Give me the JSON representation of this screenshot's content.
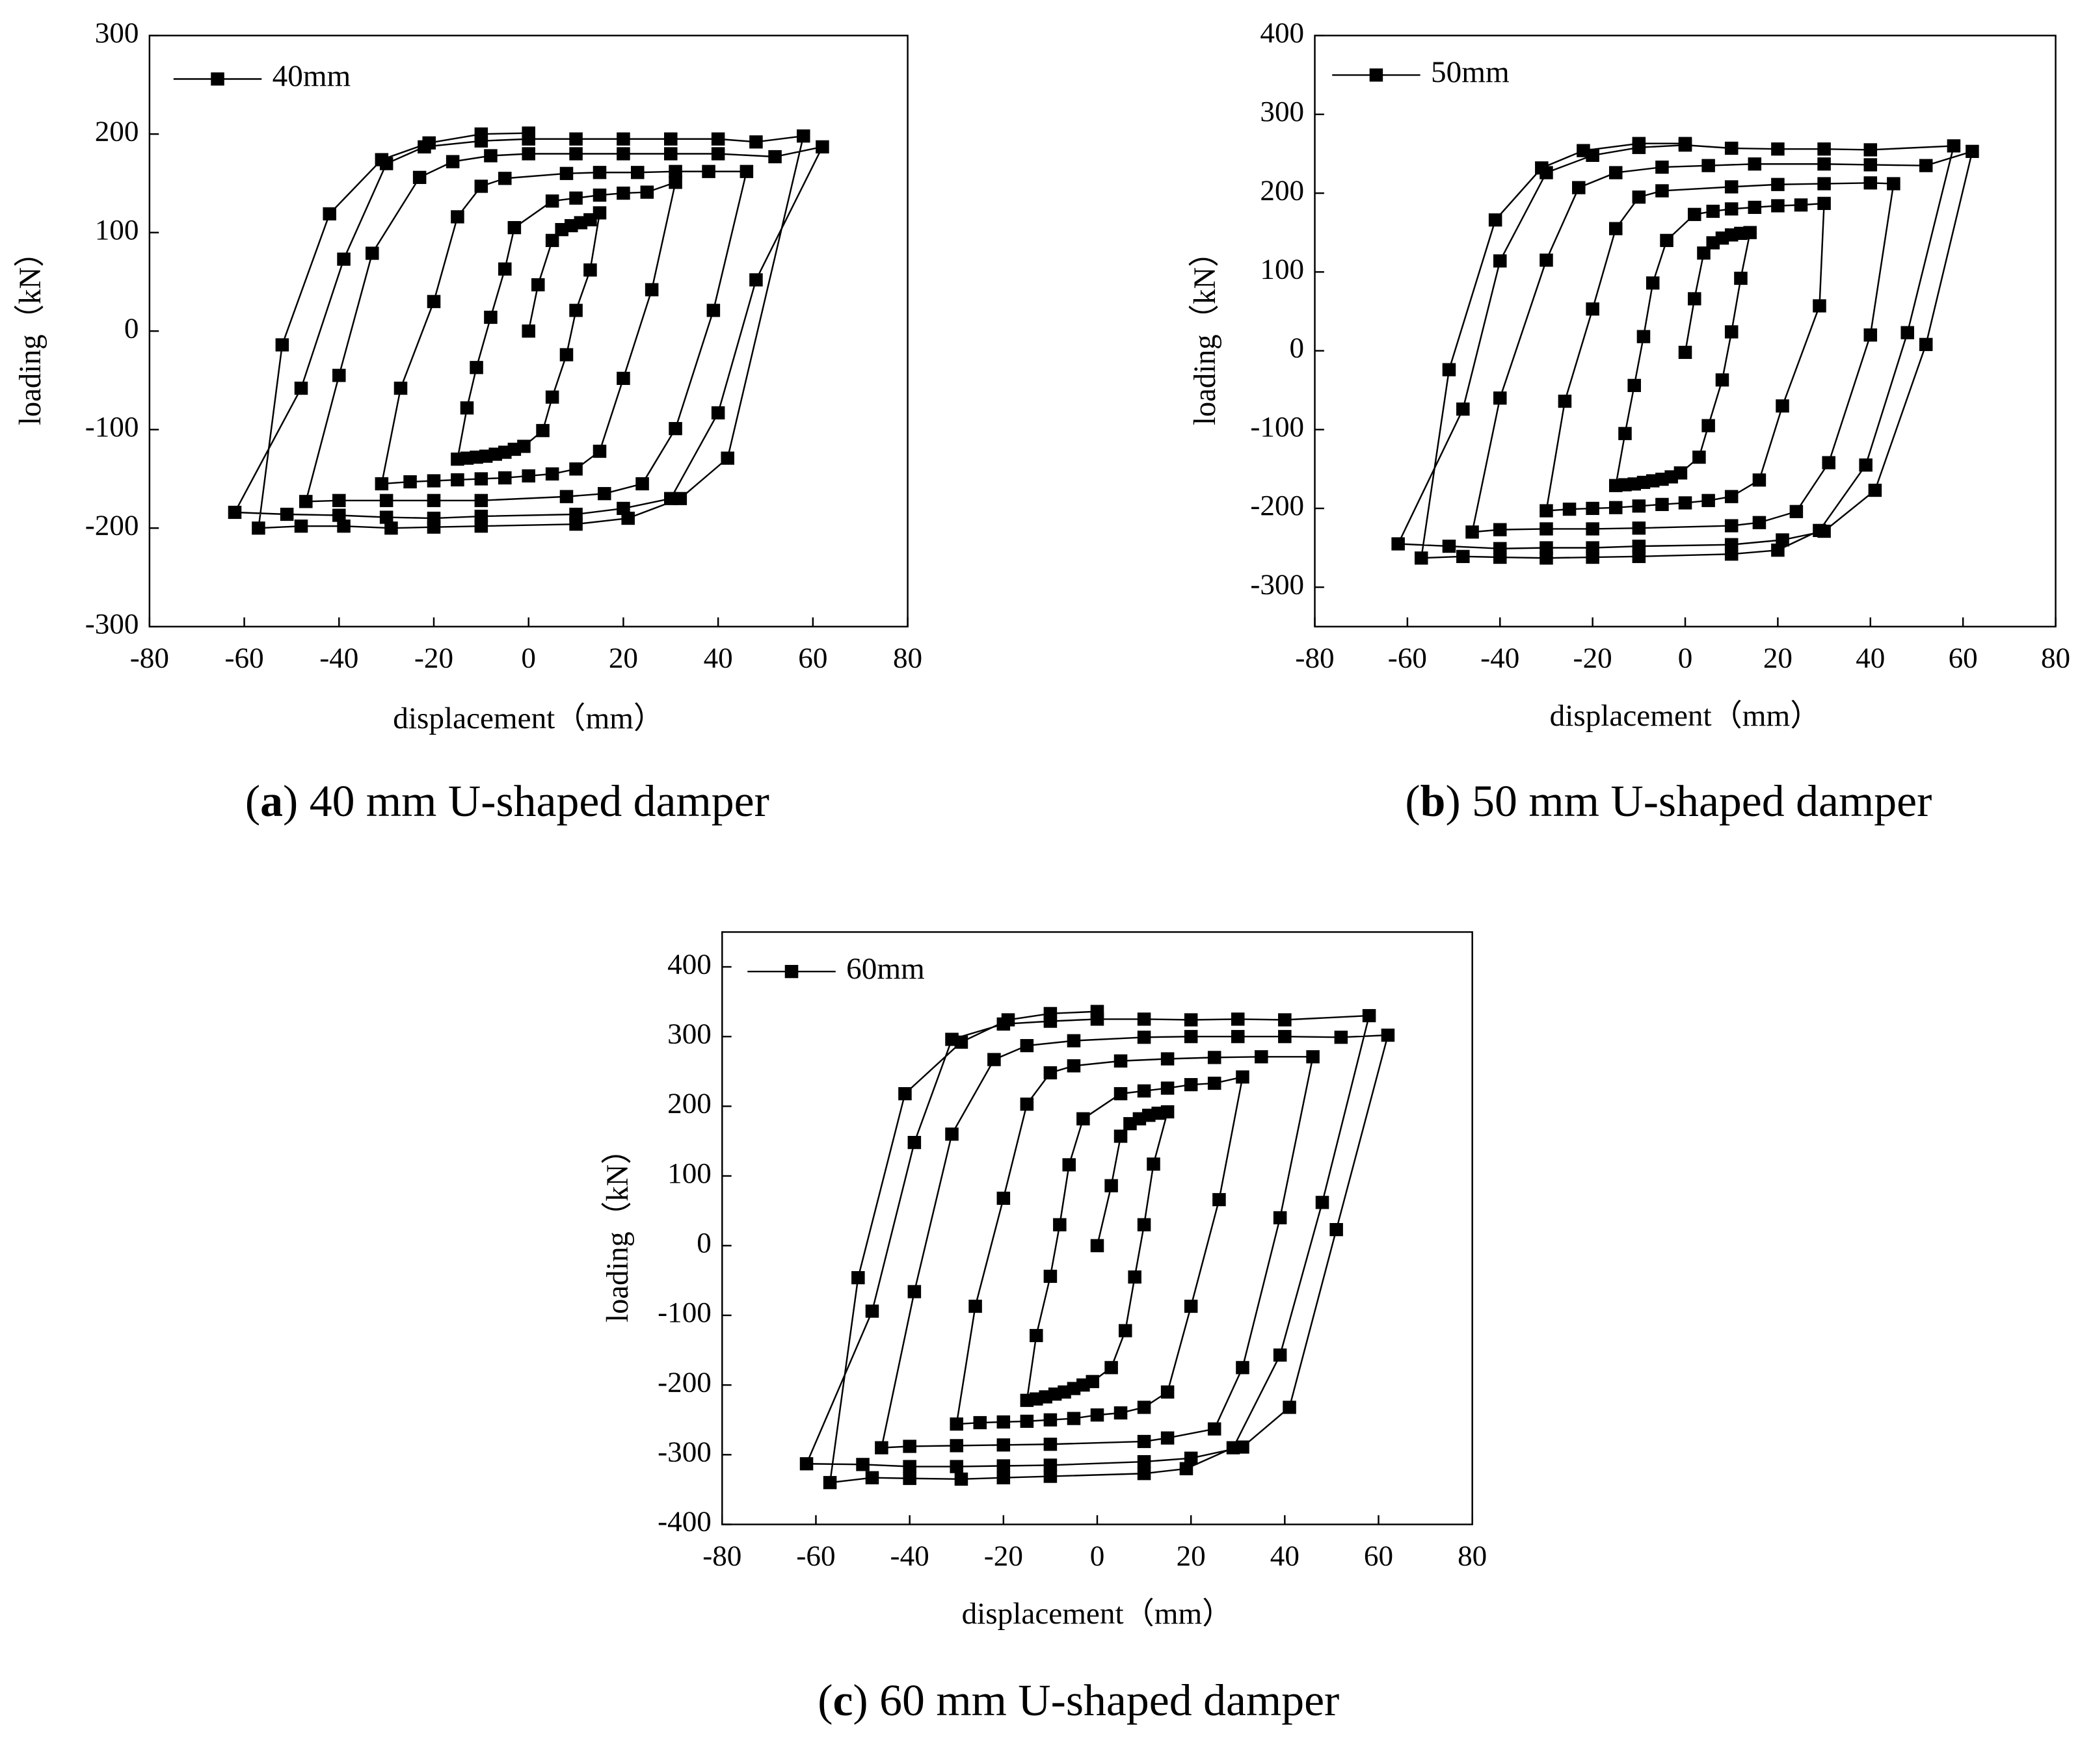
{
  "chart_data": [
    {
      "type": "line",
      "xlabel": "displacement（mm）",
      "ylabel": "loading（kN）",
      "caption": [
        "(",
        "a",
        ") 40 mm U-shaped damper"
      ],
      "xlim": [
        -80,
        80
      ],
      "ylim": [
        -300,
        300
      ],
      "xticks": [
        -80,
        -60,
        -40,
        -20,
        0,
        20,
        40,
        60,
        80
      ],
      "yticks": [
        -300,
        -200,
        -100,
        0,
        100,
        200,
        300
      ],
      "series": [
        {
          "name": "40mm",
          "color": "#000000",
          "x": [
            0,
            2,
            5,
            7,
            9,
            11,
            13,
            15,
            13,
            10,
            8,
            5,
            3,
            -1,
            -3,
            -5,
            -7,
            -9,
            -11,
            -13,
            -15,
            -13,
            -11,
            -8,
            -5,
            -3,
            5,
            10,
            15,
            20,
            25,
            31,
            26,
            20,
            15,
            10,
            5,
            0,
            -5,
            -10,
            -15,
            -20,
            -25,
            -31,
            -27,
            -20,
            -15,
            -10,
            -5,
            8,
            15,
            23,
            31,
            38,
            46,
            39,
            31,
            24,
            16,
            8,
            -10,
            -20,
            -30,
            -40,
            -47,
            -40,
            -33,
            -23,
            -16,
            -8,
            0,
            10,
            20,
            30,
            40,
            52,
            62,
            48,
            40,
            30,
            20,
            10,
            -10,
            -20,
            -30,
            -40,
            -51,
            -62,
            -48,
            -39,
            -30,
            -22,
            -10,
            0,
            10,
            20,
            30,
            40,
            48,
            58,
            42,
            32,
            21,
            10,
            -10,
            -20,
            -29,
            -39,
            -48,
            -57,
            -52,
            -42,
            -31,
            -21,
            -10,
            0
          ],
          "values": [
            0,
            47,
            92,
            103,
            107,
            110,
            113,
            120,
            62,
            21,
            -24,
            -67,
            -101,
            -117,
            -120,
            -123,
            -125,
            -127,
            -128,
            -129,
            -130,
            -78,
            -37,
            14,
            63,
            105,
            132,
            135,
            138,
            140,
            141,
            151,
            42,
            -48,
            -122,
            -140,
            -145,
            -147,
            -149,
            -150,
            -151,
            -152,
            -153,
            -155,
            -58,
            30,
            116,
            147,
            155,
            160,
            161,
            161,
            162,
            162,
            162,
            21,
            -99,
            -155,
            -165,
            -168,
            -172,
            -172,
            -172,
            -172,
            -173,
            -45,
            79,
            156,
            172,
            178,
            180,
            180,
            180,
            180,
            180,
            177,
            187,
            52,
            -83,
            -170,
            -180,
            -186,
            -188,
            -190,
            -189,
            -187,
            -186,
            -184,
            -58,
            73,
            170,
            187,
            193,
            195,
            195,
            195,
            195,
            195,
            192,
            198,
            -129,
            -170,
            -190,
            -196,
            -198,
            -199,
            -200,
            -198,
            -198,
            -200,
            -14,
            119,
            174,
            191,
            200,
            201
          ]
        }
      ]
    },
    {
      "type": "line",
      "xlabel": "displacement（mm）",
      "ylabel": "loading（kN）",
      "caption": [
        "(",
        "b",
        ") 50 mm U-shaped damper"
      ],
      "xlim": [
        -80,
        80
      ],
      "ylim": [
        -350,
        400
      ],
      "xticks": [
        -80,
        -60,
        -40,
        -20,
        0,
        20,
        40,
        60,
        80
      ],
      "yticks": [
        -300,
        -200,
        -100,
        0,
        100,
        200,
        300,
        400
      ],
      "series": [
        {
          "name": "50mm",
          "color": "#000000",
          "x": [
            0,
            2,
            4,
            6,
            8,
            10,
            12,
            14,
            12,
            10,
            8,
            5,
            3,
            -1,
            -3,
            -5,
            -7,
            -9,
            -11,
            -13,
            -15,
            -13,
            -11,
            -9,
            -7,
            -4,
            2,
            6,
            10,
            15,
            20,
            25,
            30,
            29,
            21,
            16,
            10,
            5,
            0,
            -5,
            -10,
            -15,
            -20,
            -25,
            -30,
            -26,
            -20,
            -15,
            -10,
            -5,
            10,
            20,
            30,
            40,
            45,
            40,
            31,
            24,
            16,
            10,
            -10,
            -20,
            -30,
            -40,
            -46,
            -40,
            -30,
            -23,
            -15,
            -5,
            5,
            15,
            30,
            40,
            52,
            62,
            52,
            41,
            30,
            21,
            10,
            -10,
            -20,
            -30,
            -40,
            -51,
            -62,
            -48,
            -40,
            -30,
            -20,
            -10,
            0,
            10,
            20,
            30,
            40,
            58,
            48,
            39,
            29,
            20,
            10,
            -10,
            -20,
            -30,
            -40,
            -48,
            -57,
            -51,
            -41,
            -31,
            -22,
            -10,
            0
          ],
          "values": [
            -2,
            66,
            124,
            137,
            143,
            147,
            149,
            150,
            92,
            24,
            -37,
            -95,
            -135,
            -155,
            -160,
            -163,
            -165,
            -167,
            -169,
            -170,
            -171,
            -105,
            -44,
            18,
            86,
            140,
            173,
            177,
            180,
            182,
            184,
            185,
            187,
            57,
            -70,
            -164,
            -185,
            -190,
            -193,
            -195,
            -197,
            -199,
            -200,
            -201,
            -203,
            -64,
            53,
            155,
            195,
            203,
            208,
            211,
            212,
            213,
            212,
            20,
            -142,
            -204,
            -218,
            -222,
            -225,
            -226,
            -226,
            -227,
            -230,
            -60,
            115,
            207,
            226,
            233,
            235,
            237,
            237,
            236,
            235,
            253,
            8,
            -177,
            -229,
            -240,
            -246,
            -248,
            -250,
            -250,
            -251,
            -248,
            -245,
            -74,
            114,
            226,
            248,
            258,
            261,
            257,
            256,
            256,
            255,
            260,
            23,
            -145,
            -228,
            -253,
            -258,
            -261,
            -262,
            -263,
            -262,
            -261,
            -263,
            -24,
            166,
            232,
            254,
            263,
            263
          ]
        }
      ]
    },
    {
      "type": "line",
      "xlabel": "displacement（mm）",
      "ylabel": "loading（kN）",
      "caption": [
        "(",
        "c",
        ") 60 mm U-shaped damper"
      ],
      "xlim": [
        -80,
        80
      ],
      "ylim": [
        -400,
        450
      ],
      "xticks": [
        -80,
        -60,
        -40,
        -20,
        0,
        20,
        40,
        60,
        80
      ],
      "yticks": [
        -400,
        -300,
        -200,
        -100,
        0,
        100,
        200,
        300,
        400
      ],
      "series": [
        {
          "name": "60mm",
          "color": "#000000",
          "x": [
            0,
            3,
            5,
            7,
            9,
            11,
            13,
            15,
            12,
            10,
            8,
            6,
            3,
            -1,
            -3,
            -5,
            -7,
            -9,
            -11,
            -13,
            -15,
            -13,
            -10,
            -8,
            -6,
            -3,
            5,
            10,
            15,
            20,
            25,
            31,
            26,
            20,
            15,
            10,
            5,
            0,
            -5,
            -10,
            -15,
            -20,
            -25,
            -30,
            -26,
            -20,
            -15,
            -10,
            -5,
            5,
            15,
            25,
            35,
            46,
            39,
            31,
            25,
            15,
            10,
            -10,
            -20,
            -30,
            -40,
            -46,
            -39,
            -31,
            -22,
            -15,
            -5,
            10,
            20,
            30,
            40,
            52,
            62,
            51,
            41,
            31,
            20,
            10,
            -10,
            -20,
            -30,
            -40,
            -50,
            -62,
            -48,
            -39,
            -31,
            -20,
            -10,
            0,
            10,
            20,
            30,
            40,
            58,
            48,
            39,
            29,
            19,
            10,
            -10,
            -20,
            -29,
            -40,
            -48,
            -57,
            -51,
            -41,
            -29,
            -19,
            -10,
            0
          ],
          "values": [
            0,
            86,
            157,
            175,
            182,
            187,
            190,
            192,
            117,
            30,
            -45,
            -122,
            -175,
            -195,
            -200,
            -205,
            -210,
            -213,
            -217,
            -220,
            -222,
            -129,
            -44,
            30,
            116,
            182,
            218,
            222,
            226,
            231,
            233,
            242,
            66,
            -87,
            -210,
            -232,
            -240,
            -243,
            -248,
            -250,
            -252,
            -253,
            -254,
            -256,
            -87,
            68,
            203,
            248,
            258,
            265,
            268,
            270,
            271,
            271,
            40,
            -175,
            -263,
            -276,
            -281,
            -285,
            -286,
            -287,
            -288,
            -290,
            -66,
            160,
            267,
            287,
            294,
            299,
            300,
            300,
            300,
            299,
            302,
            23,
            -232,
            -289,
            -305,
            -310,
            -315,
            -316,
            -317,
            -317,
            -314,
            -313,
            -94,
            148,
            296,
            318,
            322,
            325,
            325,
            324,
            325,
            324,
            330,
            62,
            -157,
            -290,
            -320,
            -327,
            -331,
            -333,
            -335,
            -334,
            -333,
            -340,
            -46,
            218,
            292,
            324,
            333,
            336
          ]
        }
      ]
    }
  ]
}
